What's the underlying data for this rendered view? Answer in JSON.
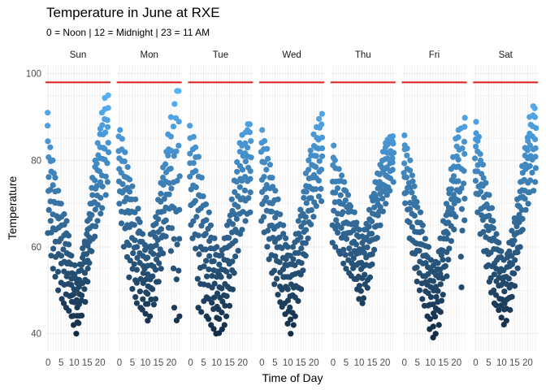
{
  "chart_data": {
    "type": "scatter",
    "title": "Temperature in June at RXE",
    "subtitle": "0 = Noon | 12 = Midnight | 23 = 11 AM",
    "xlabel": "Time of Day",
    "ylabel": "Temperature",
    "x_ticks": [
      0,
      5,
      10,
      15,
      20
    ],
    "y_ticks": [
      40,
      60,
      80,
      100
    ],
    "xlim": [
      -1,
      24
    ],
    "ylim": [
      36,
      102
    ],
    "grid": true,
    "reference_line": {
      "y": 98,
      "color": "#e41a1c"
    },
    "color_scale": {
      "low": "#132b43",
      "high": "#56b1f7"
    },
    "facets": [
      {
        "label": "Sun",
        "hourly_range": [
          [
            63,
            91
          ],
          [
            58,
            83
          ],
          [
            55,
            80
          ],
          [
            53,
            76
          ],
          [
            50,
            73
          ],
          [
            48,
            70
          ],
          [
            47,
            68
          ],
          [
            46,
            66
          ],
          [
            45,
            63
          ],
          [
            44,
            58
          ],
          [
            42,
            56
          ],
          [
            40,
            53
          ],
          [
            42,
            56
          ],
          [
            44,
            60
          ],
          [
            47,
            62
          ],
          [
            52,
            66
          ],
          [
            56,
            70
          ],
          [
            59,
            76
          ],
          [
            62,
            80
          ],
          [
            66,
            84
          ],
          [
            67,
            88
          ],
          [
            69,
            91
          ],
          [
            72,
            95
          ],
          [
            75,
            95
          ]
        ]
      },
      {
        "label": "Mon",
        "hourly_range": [
          [
            70,
            87
          ],
          [
            65,
            85
          ],
          [
            60,
            82
          ],
          [
            57,
            79
          ],
          [
            53,
            76
          ],
          [
            50,
            74
          ],
          [
            48,
            71
          ],
          [
            47,
            69
          ],
          [
            46,
            66
          ],
          [
            45,
            63
          ],
          [
            44,
            61
          ],
          [
            43,
            60
          ],
          [
            44,
            63
          ],
          [
            46,
            65
          ],
          [
            48,
            67
          ],
          [
            52,
            71
          ],
          [
            55,
            75
          ],
          [
            58,
            79
          ],
          [
            62,
            82
          ],
          [
            64,
            86
          ],
          [
            59,
            90
          ],
          [
            46,
            93
          ],
          [
            43,
            96
          ],
          [
            44,
            96
          ]
        ]
      },
      {
        "label": "Tue",
        "hourly_range": [
          [
            65,
            88
          ],
          [
            62,
            86
          ],
          [
            59,
            83
          ],
          [
            46,
            81
          ],
          [
            45,
            76
          ],
          [
            47,
            72
          ],
          [
            44,
            70
          ],
          [
            43,
            68
          ],
          [
            42,
            65
          ],
          [
            41,
            62
          ],
          [
            40,
            60
          ],
          [
            40,
            58
          ],
          [
            41,
            60
          ],
          [
            42,
            62
          ],
          [
            44,
            65
          ],
          [
            46,
            68
          ],
          [
            50,
            71
          ],
          [
            54,
            76
          ],
          [
            59,
            80
          ],
          [
            63,
            84
          ],
          [
            64,
            86
          ],
          [
            66,
            87
          ],
          [
            67,
            89
          ],
          [
            68,
            89
          ]
        ]
      },
      {
        "label": "Wed",
        "hourly_range": [
          [
            66,
            87
          ],
          [
            63,
            85
          ],
          [
            60,
            83
          ],
          [
            57,
            79
          ],
          [
            54,
            76
          ],
          [
            51,
            73
          ],
          [
            49,
            71
          ],
          [
            47,
            68
          ],
          [
            46,
            65
          ],
          [
            44,
            62
          ],
          [
            42,
            60
          ],
          [
            40,
            58
          ],
          [
            42,
            60
          ],
          [
            44,
            63
          ],
          [
            47,
            66
          ],
          [
            50,
            69
          ],
          [
            54,
            73
          ],
          [
            58,
            77
          ],
          [
            62,
            80
          ],
          [
            65,
            83
          ],
          [
            67,
            86
          ],
          [
            69,
            88
          ],
          [
            71,
            90
          ],
          [
            70,
            91
          ]
        ]
      },
      {
        "label": "Thu",
        "hourly_range": [
          [
            61,
            84
          ],
          [
            60,
            80
          ],
          [
            59,
            78
          ],
          [
            58,
            77
          ],
          [
            56,
            75
          ],
          [
            55,
            73
          ],
          [
            54,
            72
          ],
          [
            53,
            70
          ],
          [
            52,
            68
          ],
          [
            50,
            66
          ],
          [
            48,
            64
          ],
          [
            47,
            63
          ],
          [
            48,
            64
          ],
          [
            50,
            66
          ],
          [
            53,
            69
          ],
          [
            56,
            72
          ],
          [
            59,
            75
          ],
          [
            62,
            77
          ],
          [
            65,
            79
          ],
          [
            68,
            82
          ],
          [
            70,
            84
          ],
          [
            72,
            85
          ],
          [
            73,
            86
          ],
          [
            75,
            86
          ]
        ]
      },
      {
        "label": "Fri",
        "hourly_range": [
          [
            70,
            86
          ],
          [
            66,
            83
          ],
          [
            62,
            80
          ],
          [
            58,
            77
          ],
          [
            55,
            74
          ],
          [
            52,
            71
          ],
          [
            50,
            68
          ],
          [
            48,
            65
          ],
          [
            46,
            62
          ],
          [
            44,
            60
          ],
          [
            41,
            57
          ],
          [
            39,
            56
          ],
          [
            40,
            57
          ],
          [
            42,
            59
          ],
          [
            45,
            62
          ],
          [
            49,
            66
          ],
          [
            53,
            70
          ],
          [
            57,
            74
          ],
          [
            61,
            78
          ],
          [
            64,
            81
          ],
          [
            67,
            85
          ],
          [
            70,
            87
          ],
          [
            50,
            88
          ],
          [
            66,
            90
          ]
        ]
      },
      {
        "label": "Sat",
        "hourly_range": [
          [
            72,
            89
          ],
          [
            68,
            86
          ],
          [
            63,
            82
          ],
          [
            59,
            79
          ],
          [
            55,
            75
          ],
          [
            52,
            72
          ],
          [
            49,
            69
          ],
          [
            47,
            66
          ],
          [
            46,
            63
          ],
          [
            45,
            61
          ],
          [
            43,
            59
          ],
          [
            42,
            57
          ],
          [
            43,
            59
          ],
          [
            45,
            61
          ],
          [
            48,
            64
          ],
          [
            51,
            67
          ],
          [
            55,
            71
          ],
          [
            60,
            75
          ],
          [
            64,
            79
          ],
          [
            68,
            83
          ],
          [
            70,
            86
          ],
          [
            72,
            90
          ],
          [
            73,
            93
          ],
          [
            75,
            92
          ]
        ]
      }
    ]
  }
}
